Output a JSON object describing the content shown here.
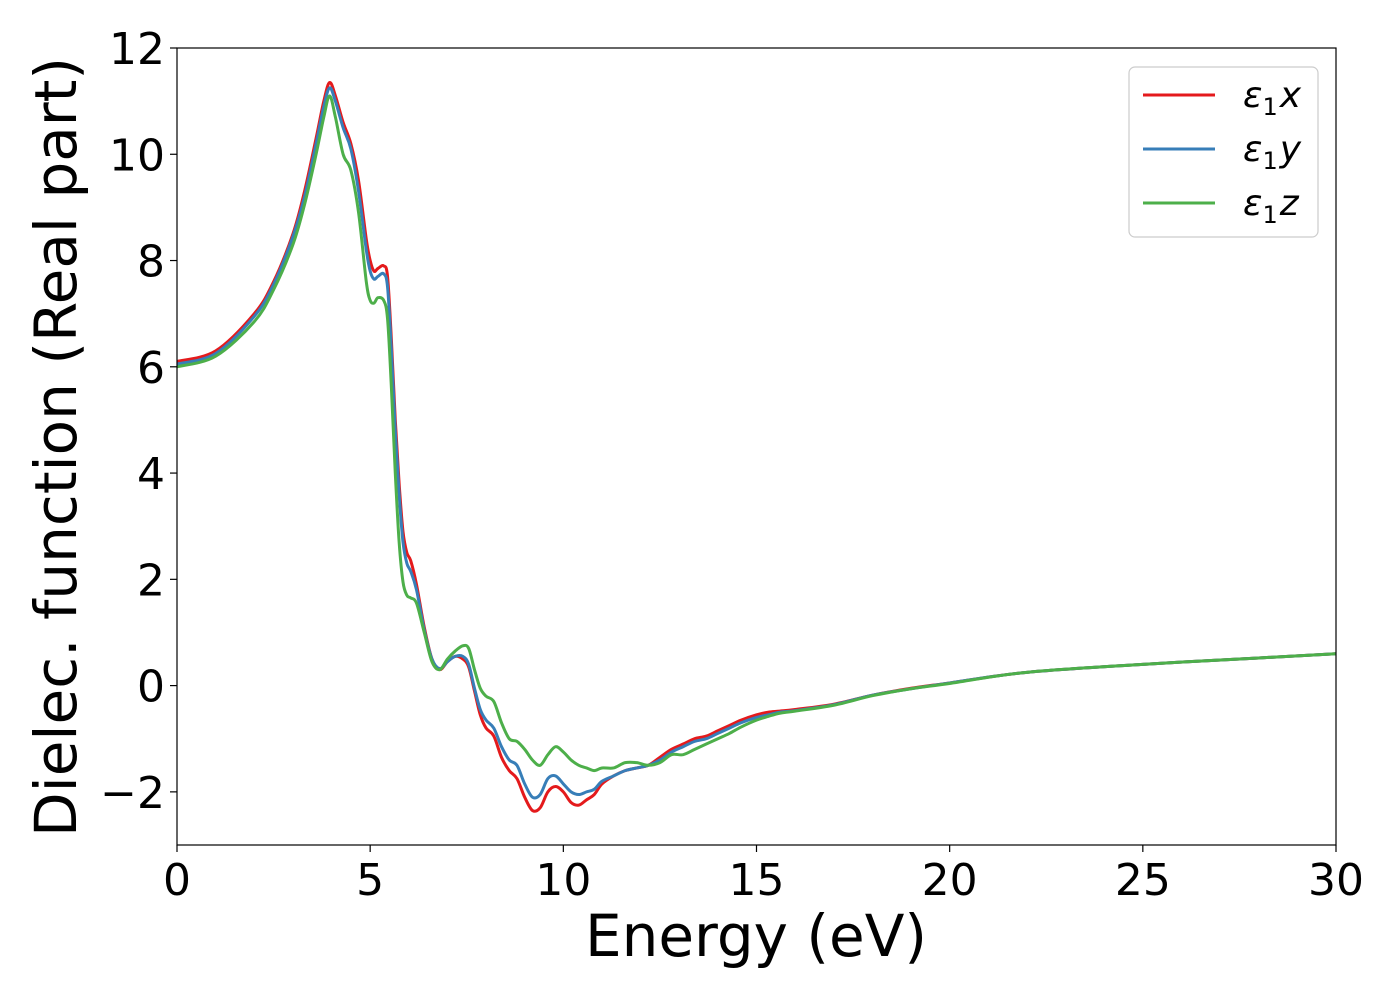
{
  "chart_data": {
    "type": "line",
    "xlabel": "Energy (eV)",
    "ylabel": "Dielec. function (Real part)",
    "xlim": [
      0,
      30
    ],
    "ylim": [
      -3,
      12
    ],
    "xticks": [
      0,
      5,
      10,
      15,
      20,
      25,
      30
    ],
    "xtick_labels": [
      "0",
      "5",
      "10",
      "15",
      "20",
      "25",
      "30"
    ],
    "yticks": [
      -2,
      0,
      2,
      4,
      6,
      8,
      10,
      12
    ],
    "ytick_labels": [
      "−2",
      "0",
      "2",
      "4",
      "6",
      "8",
      "10",
      "12"
    ],
    "grid": false,
    "legend_position": "top-right",
    "series": [
      {
        "name": "ε₁x",
        "legend_base": "ε",
        "legend_sub": "1",
        "legend_var": "x",
        "color": "#e41a1c",
        "x": [
          0,
          1,
          2,
          2.5,
          3,
          3.3,
          3.6,
          3.8,
          3.95,
          4.1,
          4.3,
          4.5,
          4.7,
          4.9,
          5.0,
          5.1,
          5.2,
          5.35,
          5.45,
          5.55,
          5.65,
          5.75,
          5.85,
          5.95,
          6.05,
          6.2,
          6.4,
          6.6,
          6.8,
          7.0,
          7.2,
          7.4,
          7.55,
          7.7,
          7.85,
          8.0,
          8.2,
          8.4,
          8.6,
          8.8,
          9.0,
          9.2,
          9.4,
          9.6,
          9.8,
          10.0,
          10.2,
          10.4,
          10.6,
          10.8,
          11.0,
          11.3,
          11.6,
          11.9,
          12.2,
          12.5,
          12.8,
          13.1,
          13.4,
          13.7,
          14.0,
          14.3,
          14.6,
          15.0,
          15.3,
          15.6,
          16.0,
          17.0,
          18.0,
          19.0,
          20.0,
          22.0,
          25.0,
          28.0,
          30.0
        ],
        "values": [
          6.1,
          6.3,
          7.0,
          7.6,
          8.5,
          9.3,
          10.3,
          11.0,
          11.35,
          11.1,
          10.6,
          10.2,
          9.5,
          8.4,
          8.0,
          7.8,
          7.85,
          7.9,
          7.7,
          6.5,
          5.0,
          3.8,
          2.9,
          2.5,
          2.35,
          1.9,
          1.1,
          0.5,
          0.3,
          0.45,
          0.55,
          0.5,
          0.35,
          -0.1,
          -0.55,
          -0.8,
          -0.95,
          -1.35,
          -1.6,
          -1.75,
          -2.1,
          -2.35,
          -2.3,
          -2.0,
          -1.9,
          -2.0,
          -2.2,
          -2.25,
          -2.15,
          -2.05,
          -1.85,
          -1.7,
          -1.6,
          -1.55,
          -1.5,
          -1.35,
          -1.2,
          -1.1,
          -1.0,
          -0.95,
          -0.85,
          -0.75,
          -0.65,
          -0.55,
          -0.5,
          -0.48,
          -0.45,
          -0.35,
          -0.18,
          -0.05,
          0.05,
          0.25,
          0.4,
          0.52,
          0.6
        ]
      },
      {
        "name": "ε₁y",
        "legend_base": "ε",
        "legend_sub": "1",
        "legend_var": "y",
        "color": "#377eb8",
        "x": [
          0,
          1,
          2,
          2.5,
          3,
          3.3,
          3.6,
          3.8,
          3.95,
          4.1,
          4.3,
          4.5,
          4.7,
          4.9,
          5.0,
          5.1,
          5.2,
          5.35,
          5.45,
          5.55,
          5.65,
          5.75,
          5.85,
          5.95,
          6.05,
          6.2,
          6.4,
          6.6,
          6.8,
          7.0,
          7.2,
          7.4,
          7.55,
          7.7,
          7.85,
          8.0,
          8.2,
          8.4,
          8.6,
          8.8,
          9.0,
          9.2,
          9.4,
          9.6,
          9.8,
          10.0,
          10.2,
          10.4,
          10.6,
          10.8,
          11.0,
          11.3,
          11.6,
          11.9,
          12.2,
          12.5,
          12.8,
          13.1,
          13.4,
          13.7,
          14.0,
          14.3,
          14.6,
          15.0,
          15.3,
          15.6,
          16.0,
          17.0,
          18.0,
          19.0,
          20.0,
          22.0,
          25.0,
          28.0,
          30.0
        ],
        "values": [
          6.05,
          6.25,
          6.95,
          7.55,
          8.45,
          9.2,
          10.2,
          10.9,
          11.25,
          11.0,
          10.5,
          10.1,
          9.3,
          8.2,
          7.8,
          7.65,
          7.7,
          7.75,
          7.5,
          6.3,
          4.8,
          3.6,
          2.7,
          2.3,
          2.15,
          1.8,
          1.05,
          0.5,
          0.32,
          0.45,
          0.55,
          0.55,
          0.4,
          -0.05,
          -0.45,
          -0.65,
          -0.8,
          -1.15,
          -1.4,
          -1.5,
          -1.85,
          -2.1,
          -2.05,
          -1.75,
          -1.7,
          -1.85,
          -2.0,
          -2.05,
          -2.0,
          -1.95,
          -1.8,
          -1.7,
          -1.6,
          -1.55,
          -1.5,
          -1.4,
          -1.25,
          -1.15,
          -1.05,
          -1.0,
          -0.9,
          -0.8,
          -0.7,
          -0.6,
          -0.55,
          -0.5,
          -0.47,
          -0.36,
          -0.18,
          -0.06,
          0.05,
          0.25,
          0.4,
          0.52,
          0.6
        ]
      },
      {
        "name": "ε₁z",
        "legend_base": "ε",
        "legend_sub": "1",
        "legend_var": "z",
        "color": "#4daf4a",
        "x": [
          0,
          1,
          2,
          2.5,
          3,
          3.3,
          3.6,
          3.8,
          3.95,
          4.1,
          4.3,
          4.5,
          4.7,
          4.9,
          5.0,
          5.1,
          5.2,
          5.35,
          5.45,
          5.55,
          5.65,
          5.75,
          5.85,
          5.95,
          6.05,
          6.2,
          6.4,
          6.6,
          6.8,
          7.0,
          7.2,
          7.4,
          7.55,
          7.7,
          7.85,
          8.0,
          8.2,
          8.4,
          8.6,
          8.8,
          9.0,
          9.2,
          9.4,
          9.6,
          9.8,
          10.0,
          10.2,
          10.4,
          10.6,
          10.8,
          11.0,
          11.3,
          11.6,
          11.9,
          12.2,
          12.5,
          12.8,
          13.1,
          13.4,
          13.7,
          14.0,
          14.3,
          14.6,
          15.0,
          15.3,
          15.6,
          16.0,
          17.0,
          18.0,
          19.0,
          20.0,
          22.0,
          25.0,
          28.0,
          30.0
        ],
        "values": [
          6.0,
          6.2,
          6.85,
          7.45,
          8.3,
          9.05,
          10.0,
          10.7,
          11.1,
          10.7,
          10.0,
          9.7,
          8.9,
          7.6,
          7.25,
          7.2,
          7.3,
          7.25,
          6.9,
          5.6,
          4.0,
          2.7,
          1.95,
          1.7,
          1.65,
          1.55,
          1.0,
          0.45,
          0.3,
          0.5,
          0.65,
          0.75,
          0.7,
          0.3,
          -0.05,
          -0.2,
          -0.3,
          -0.7,
          -1.0,
          -1.05,
          -1.2,
          -1.4,
          -1.5,
          -1.3,
          -1.15,
          -1.25,
          -1.4,
          -1.5,
          -1.55,
          -1.6,
          -1.55,
          -1.55,
          -1.45,
          -1.45,
          -1.5,
          -1.45,
          -1.3,
          -1.3,
          -1.2,
          -1.1,
          -1.0,
          -0.9,
          -0.78,
          -0.65,
          -0.58,
          -0.52,
          -0.48,
          -0.37,
          -0.19,
          -0.06,
          0.04,
          0.25,
          0.4,
          0.52,
          0.6
        ]
      }
    ]
  }
}
